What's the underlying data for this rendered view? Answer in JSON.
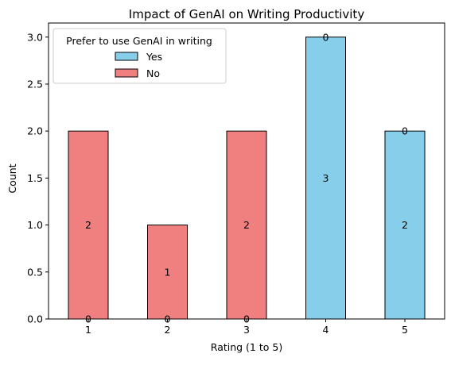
{
  "chart_data": {
    "type": "bar",
    "stacked": true,
    "title": "Impact of GenAI on Writing Productivity",
    "xlabel": "Rating (1 to 5)",
    "ylabel": "Count",
    "categories": [
      "1",
      "2",
      "3",
      "4",
      "5"
    ],
    "ylim": [
      0,
      3.15
    ],
    "yticks": [
      "0.0",
      "0.5",
      "1.0",
      "1.5",
      "2.0",
      "2.5",
      "3.0"
    ],
    "grid": false,
    "legend": {
      "title": "Prefer to use GenAI in writing",
      "placement": "top-left"
    },
    "series": [
      {
        "name": "Yes",
        "color": "#87CEEB",
        "values": [
          0,
          0,
          0,
          3,
          2
        ]
      },
      {
        "name": "No",
        "color": "#F08080",
        "values": [
          2,
          1,
          2,
          0,
          0
        ]
      }
    ],
    "bar_labels": {
      "Yes": [
        "0",
        "0",
        "0",
        "3",
        "2"
      ],
      "No": [
        "2",
        "1",
        "2",
        "0",
        "0"
      ]
    }
  }
}
